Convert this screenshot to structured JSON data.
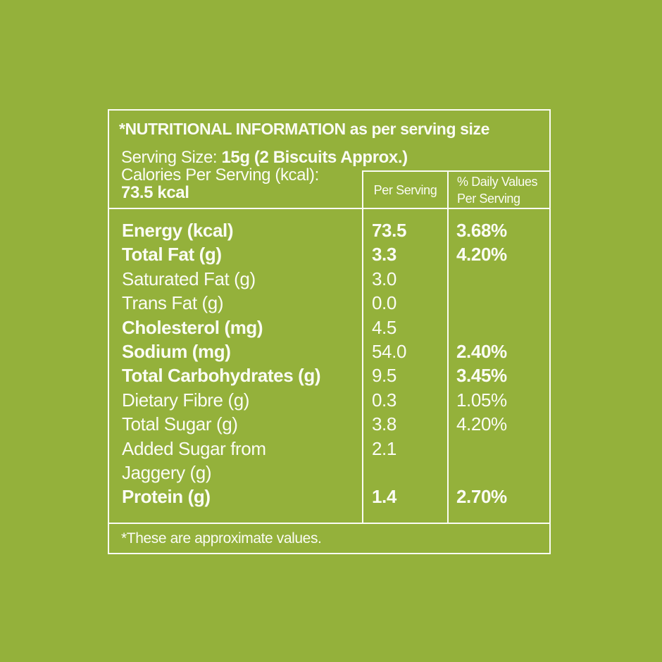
{
  "colors": {
    "background": "#94B13B",
    "foreground": "#FBFCF4"
  },
  "header": {
    "title": "*NUTRITIONAL INFORMATION as per serving size",
    "serving_size_label": "Serving Size: ",
    "serving_size_value": "15g (2 Biscuits Approx.)",
    "calories_label": "Calories Per Serving (kcal):",
    "calories_value": "73.5 kcal",
    "columns": {
      "per_serving": "Per Serving",
      "daily_values": "% Daily Values\nPer Serving"
    }
  },
  "table": {
    "rows": [
      {
        "label": "Energy (kcal)",
        "per_serving": "73.5",
        "daily_value": "3.68%"
      },
      {
        "label": "Total Fat (g)",
        "per_serving": "3.3",
        "daily_value": "4.20%"
      },
      {
        "label": "Saturated Fat (g)",
        "per_serving": "3.0",
        "daily_value": ""
      },
      {
        "label": "Trans Fat (g)",
        "per_serving": "0.0",
        "daily_value": ""
      },
      {
        "label": "Cholesterol (mg)",
        "per_serving": "4.5",
        "daily_value": ""
      },
      {
        "label": "Sodium (mg)",
        "per_serving": "54.0",
        "daily_value": "2.40%"
      },
      {
        "label": "Total Carbohydrates (g)",
        "per_serving": "9.5",
        "daily_value": "3.45%"
      },
      {
        "label": "Dietary Fibre (g)",
        "per_serving": "0.3",
        "daily_value": "1.05%"
      },
      {
        "label": "Total Sugar (g)",
        "per_serving": "3.8",
        "daily_value": "4.20%"
      },
      {
        "label": "Added Sugar from\nJaggery (g)",
        "per_serving": "2.1",
        "daily_value": ""
      },
      {
        "label": "Protein (g)",
        "per_serving": "1.4",
        "daily_value": "2.70%"
      }
    ]
  },
  "footer": {
    "note": "*These are approximate values."
  }
}
